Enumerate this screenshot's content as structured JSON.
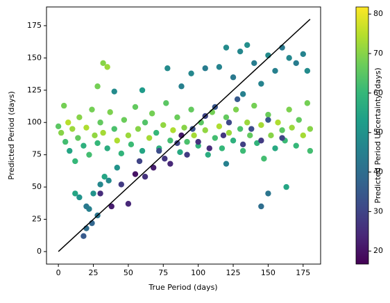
{
  "chart_data": {
    "type": "scatter",
    "xlabel": "True Period (days)",
    "ylabel": "Predicted Period (days)",
    "colorbar_label": "Predicted Period Uncertainty (days)",
    "xlim": [
      -8.5,
      187.5
    ],
    "ylim": [
      -9.7,
      189.5
    ],
    "clim": [
      16.7,
      81.8
    ],
    "xticks": [
      0,
      25,
      50,
      75,
      100,
      125,
      150,
      175
    ],
    "yticks": [
      0,
      25,
      50,
      75,
      100,
      125,
      150,
      175
    ],
    "cticks": [
      20,
      30,
      40,
      50,
      60,
      70,
      80
    ],
    "colormap": "viridis",
    "reference_line": {
      "x": [
        0,
        180
      ],
      "y": [
        0,
        180
      ],
      "color": "#000000"
    },
    "x": [
      0,
      2,
      4,
      5,
      7,
      8,
      10,
      12,
      14,
      15,
      18,
      20,
      22,
      24,
      26,
      28,
      30,
      32,
      35,
      37,
      40,
      42,
      45,
      47,
      50,
      52,
      55,
      57,
      60,
      62,
      65,
      67,
      70,
      72,
      75,
      77,
      80,
      82,
      85,
      87,
      90,
      92,
      95,
      97,
      100,
      102,
      105,
      107,
      110,
      112,
      115,
      117,
      120,
      122,
      125,
      127,
      130,
      132,
      135,
      137,
      140,
      142,
      145,
      147,
      150,
      152,
      155,
      157,
      160,
      162,
      165,
      167,
      170,
      172,
      175,
      178,
      180,
      180,
      30,
      38,
      45,
      50,
      55,
      58,
      62,
      68,
      72,
      76,
      80,
      85,
      88,
      92,
      96,
      100,
      105,
      108,
      112,
      118,
      122,
      128,
      132,
      138,
      145,
      150,
      160,
      78,
      88,
      95,
      105,
      115,
      120,
      125,
      130,
      132,
      135,
      140,
      145,
      150,
      155,
      160,
      165,
      170,
      175,
      178,
      120,
      145,
      150,
      163,
      60,
      40,
      18,
      20,
      22,
      25,
      28,
      30,
      12,
      15,
      33,
      36,
      20,
      32,
      28,
      35,
      24,
      42
    ],
    "values": [
      97,
      92,
      113,
      85,
      100,
      78,
      95,
      70,
      88,
      104,
      82,
      96,
      75,
      110,
      90,
      84,
      100,
      92,
      80,
      108,
      95,
      86,
      76,
      102,
      90,
      83,
      112,
      95,
      78,
      100,
      88,
      107,
      92,
      80,
      98,
      115,
      86,
      94,
      104,
      77,
      96,
      85,
      110,
      90,
      82,
      100,
      94,
      75,
      108,
      88,
      97,
      80,
      104,
      92,
      86,
      110,
      95,
      78,
      100,
      90,
      113,
      84,
      98,
      72,
      106,
      90,
      80,
      100,
      94,
      86,
      110,
      96,
      82,
      102,
      90,
      115,
      95,
      78,
      45,
      35,
      52,
      37,
      60,
      70,
      58,
      65,
      78,
      72,
      68,
      84,
      90,
      75,
      95,
      85,
      105,
      80,
      112,
      90,
      100,
      118,
      83,
      95,
      86,
      102,
      88,
      142,
      128,
      138,
      142,
      143,
      158,
      135,
      155,
      122,
      160,
      146,
      130,
      152,
      140,
      158,
      150,
      146,
      153,
      140,
      68,
      35,
      45,
      50,
      125,
      124,
      12,
      18,
      33,
      45,
      28,
      52,
      45,
      42,
      58,
      55,
      35,
      146,
      128,
      143,
      22,
      65
    ],
    "c": [
      65,
      70,
      68,
      62,
      75,
      55,
      72,
      60,
      66,
      70,
      58,
      74,
      62,
      68,
      71,
      60,
      66,
      73,
      57,
      69,
      63,
      74,
      59,
      67,
      72,
      61,
      66,
      70,
      55,
      64,
      73,
      68,
      60,
      58,
      71,
      65,
      62,
      74,
      67,
      56,
      70,
      63,
      66,
      73,
      59,
      65,
      71,
      57,
      68,
      62,
      74,
      60,
      66,
      72,
      58,
      69,
      63,
      61,
      72,
      66,
      68,
      59,
      73,
      62,
      67,
      70,
      56,
      74,
      65,
      61,
      69,
      72,
      60,
      66,
      73,
      68,
      70,
      62,
      25,
      22,
      28,
      24,
      20,
      30,
      26,
      22,
      32,
      27,
      24,
      30,
      21,
      28,
      33,
      26,
      30,
      25,
      34,
      27,
      31,
      35,
      29,
      32,
      28,
      34,
      30,
      48,
      45,
      47,
      44,
      46,
      48,
      43,
      47,
      45,
      49,
      44,
      46,
      48,
      45,
      43,
      47,
      44,
      46,
      48,
      45,
      40,
      42,
      55,
      52,
      48,
      35,
      40,
      45,
      50,
      42,
      47,
      55,
      50,
      55,
      48,
      43,
      70,
      68,
      72,
      38,
      50
    ]
  }
}
